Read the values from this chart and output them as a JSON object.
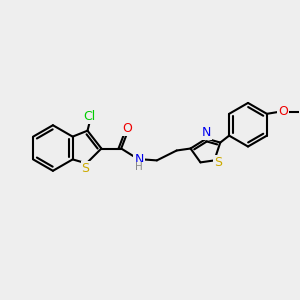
{
  "bg_color": "#eeeeee",
  "bond_color": "#000000",
  "bond_width": 1.5,
  "atom_colors": {
    "Cl": "#00cc00",
    "S_thio": "#ccaa00",
    "S_thia": "#ccaa00",
    "N": "#0000ee",
    "O": "#ee0000",
    "H": "#888888",
    "C": "#000000"
  },
  "figsize": [
    3.0,
    3.0
  ],
  "dpi": 100
}
